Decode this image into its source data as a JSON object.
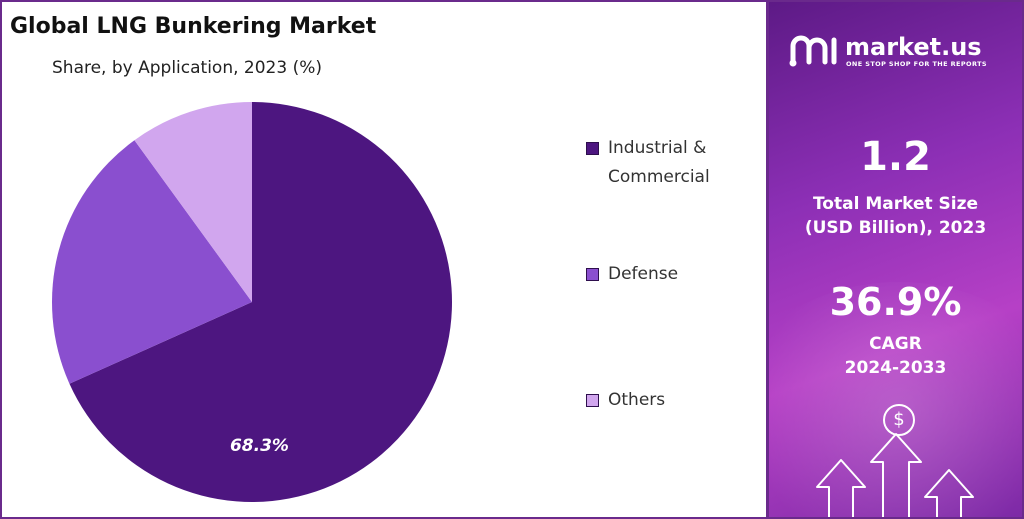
{
  "title": "Global LNG Bunkering Market",
  "subtitle": "Share, by Application, 2023 (%)",
  "chart_data": {
    "type": "pie",
    "title": "Global LNG Bunkering Market",
    "subtitle": "Share, by Application, 2023 (%)",
    "slices": [
      {
        "label": "Industrial & Commercial",
        "value": 68.3,
        "color": "#4d1680",
        "data_label": "68.3%"
      },
      {
        "label": "Defense",
        "value": 21.7,
        "color": "#8a4fcf",
        "data_label": ""
      },
      {
        "label": "Others",
        "value": 10.0,
        "color": "#d1a6ee",
        "data_label": ""
      }
    ],
    "legend_position": "right"
  },
  "legend": [
    {
      "line1": "Industrial &",
      "line2": "Commercial",
      "color": "#4d1680"
    },
    {
      "line1": "Defense",
      "line2": "",
      "color": "#8a4fcf"
    },
    {
      "line1": "Others",
      "line2": "",
      "color": "#d1a6ee"
    }
  ],
  "sidebar": {
    "brand_name": "market.us",
    "brand_tagline": "ONE STOP SHOP FOR THE REPORTS",
    "market_size_value": "1.2",
    "market_size_label_line1": "Total Market Size",
    "market_size_label_line2": "(USD Billion), 2023",
    "cagr_value": "36.9%",
    "cagr_label_line1": "CAGR",
    "cagr_label_line2": "2024-2033",
    "dollar_symbol": "$"
  }
}
